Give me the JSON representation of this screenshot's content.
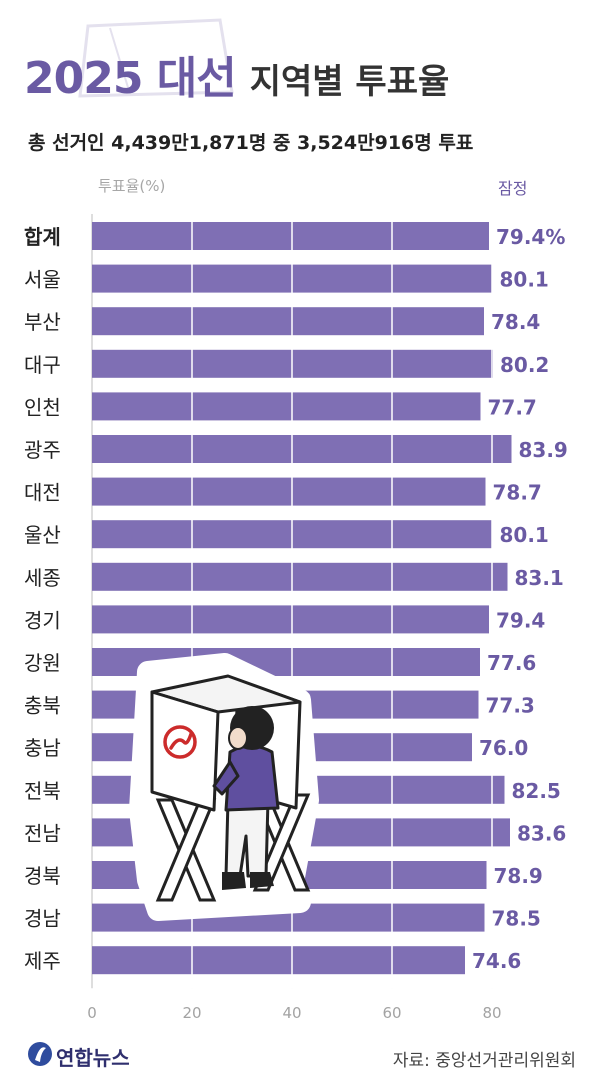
{
  "header": {
    "title_strong": "2025 대선",
    "title_rest": "지역별 투표율",
    "subtitle": "총 선거인 4,439만1,871명 중 3,524만916명 투표",
    "axis_caption": "투표율(%)",
    "status_note": "잠정"
  },
  "colors": {
    "bar": "#7f6fb4",
    "accent": "#6a5aa3",
    "grid": "#ffffff"
  },
  "chart_data": {
    "type": "bar",
    "orientation": "horizontal",
    "categories": [
      "합계",
      "서울",
      "부산",
      "대구",
      "인천",
      "광주",
      "대전",
      "울산",
      "세종",
      "경기",
      "강원",
      "충북",
      "충남",
      "전북",
      "전남",
      "경북",
      "경남",
      "제주"
    ],
    "values": [
      79.4,
      80.1,
      78.4,
      80.2,
      77.7,
      83.9,
      78.7,
      80.1,
      83.1,
      79.4,
      77.6,
      77.3,
      76.0,
      82.5,
      83.6,
      78.9,
      78.5,
      74.6
    ],
    "value_labels": [
      "79.4%",
      "80.1",
      "78.4",
      "80.2",
      "77.7",
      "83.9",
      "78.7",
      "80.1",
      "83.1",
      "79.4",
      "77.6",
      "77.3",
      "76.0",
      "82.5",
      "83.6",
      "78.9",
      "78.5",
      "74.6"
    ],
    "xlim": [
      0,
      85
    ],
    "x_ticks": [
      0,
      20,
      40,
      60,
      80
    ],
    "xlabel": "투표율(%)",
    "grid": true
  },
  "illustration": {
    "icon": "voting-booth-illustration",
    "stamp_icon": "vote-stamp-icon"
  },
  "footer": {
    "logo_icon": "yonhap-logo-icon",
    "logo_text": "연합뉴스",
    "source": "자료: 중앙선거관리위원회"
  }
}
